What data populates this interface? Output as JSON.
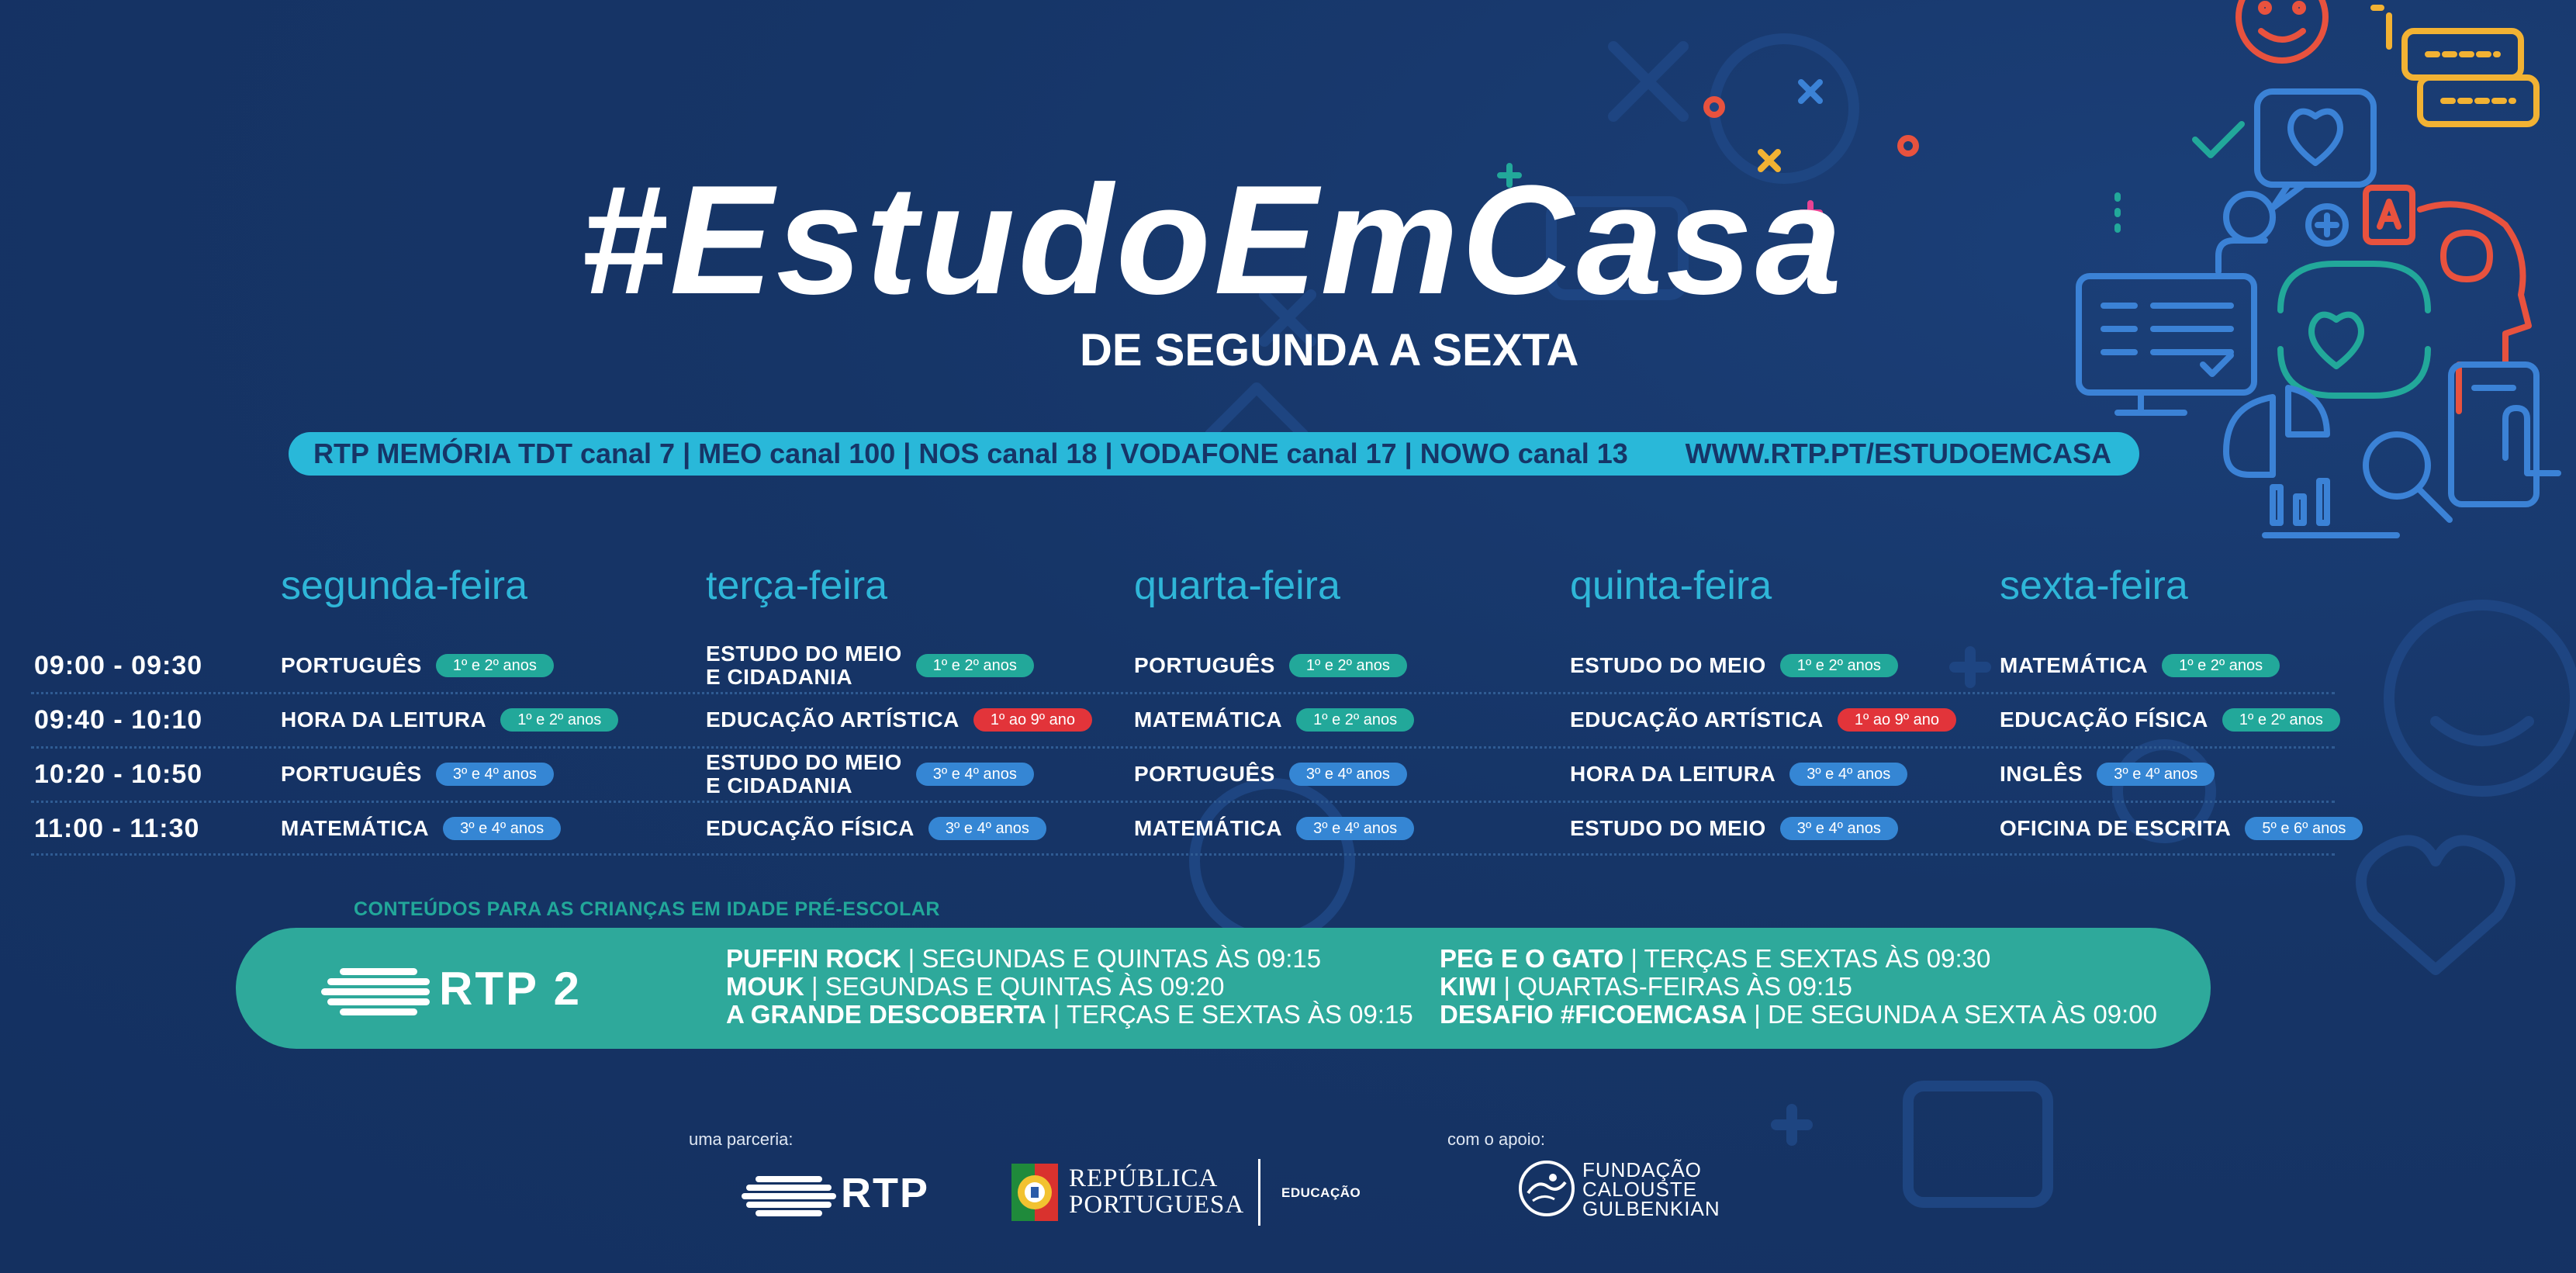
{
  "colors": {
    "background": "#163567",
    "cyan": "#2fb6d8",
    "teal": "#22a89a",
    "blue": "#3586d4",
    "red": "#e2343a"
  },
  "header": {
    "title": "#EstudoEmCasa",
    "subtitle": "DE SEGUNDA A SEXTA",
    "channels": "RTP MEMÓRIA  TDT canal 7 | MEO canal 100 | NOS canal 18 | VODAFONE canal 17 | NOWO canal 13",
    "url": "WWW.RTP.PT/ESTUDOEMCASA"
  },
  "schedule": {
    "days": [
      "segunda-feira",
      "terça-feira",
      "quarta-feira",
      "quinta-feira",
      "sexta-feira"
    ],
    "times": [
      "09:00 - 09:30",
      "09:40 - 10:10",
      "10:20 - 10:50",
      "11:00 - 11:30"
    ],
    "rows": [
      [
        {
          "subject": "PORTUGUÊS",
          "grades": "1º e 2º anos",
          "color": "teal"
        },
        {
          "subject": "ESTUDO DO MEIO\nE CIDADANIA",
          "grades": "1º e 2º anos",
          "color": "teal"
        },
        {
          "subject": "PORTUGUÊS",
          "grades": "1º e 2º anos",
          "color": "teal"
        },
        {
          "subject": "ESTUDO DO MEIO",
          "grades": "1º e 2º anos",
          "color": "teal"
        },
        {
          "subject": "MATEMÁTICA",
          "grades": "1º e 2º anos",
          "color": "teal"
        }
      ],
      [
        {
          "subject": "HORA DA LEITURA",
          "grades": "1º e 2º anos",
          "color": "teal"
        },
        {
          "subject": "EDUCAÇÃO ARTÍSTICA",
          "grades": "1º ao 9º ano",
          "color": "red"
        },
        {
          "subject": "MATEMÁTICA",
          "grades": "1º e 2º anos",
          "color": "teal"
        },
        {
          "subject": "EDUCAÇÃO ARTÍSTICA",
          "grades": "1º ao 9º ano",
          "color": "red"
        },
        {
          "subject": "EDUCAÇÃO FÍSICA",
          "grades": "1º e 2º anos",
          "color": "teal"
        }
      ],
      [
        {
          "subject": "PORTUGUÊS",
          "grades": "3º e 4º anos",
          "color": "blue"
        },
        {
          "subject": "ESTUDO DO MEIO\nE CIDADANIA",
          "grades": "3º e 4º anos",
          "color": "blue"
        },
        {
          "subject": "PORTUGUÊS",
          "grades": "3º e 4º anos",
          "color": "blue"
        },
        {
          "subject": "HORA DA LEITURA",
          "grades": "3º e 4º anos",
          "color": "blue"
        },
        {
          "subject": "INGLÊS",
          "grades": "3º e 4º anos",
          "color": "blue"
        }
      ],
      [
        {
          "subject": "MATEMÁTICA",
          "grades": "3º e 4º anos",
          "color": "blue"
        },
        {
          "subject": "EDUCAÇÃO FÍSICA",
          "grades": "3º e 4º anos",
          "color": "blue"
        },
        {
          "subject": "MATEMÁTICA",
          "grades": "3º e 4º anos",
          "color": "blue"
        },
        {
          "subject": "ESTUDO DO MEIO",
          "grades": "3º e 4º anos",
          "color": "blue"
        },
        {
          "subject": "OFICINA DE ESCRITA",
          "grades": "5º e 6º anos",
          "color": "blue"
        }
      ]
    ]
  },
  "preschool": {
    "heading": "CONTEÚDOS PARA AS CRIANÇAS EM IDADE PRÉ-ESCOLAR",
    "channel_logo": "RTP 2",
    "shows": [
      {
        "name": "PUFFIN ROCK",
        "schedule": " | SEGUNDAS E QUINTAS ÀS 09:15"
      },
      {
        "name": "MOUK",
        "schedule": " | SEGUNDAS E QUINTAS ÀS 09:20"
      },
      {
        "name": "A GRANDE DESCOBERTA",
        "schedule": " | TERÇAS E SEXTAS ÀS 09:15"
      },
      {
        "name": "PEG E O GATO",
        "schedule": " | TERÇAS E SEXTAS ÀS 09:30"
      },
      {
        "name": "KIWI",
        "schedule": " | QUARTAS-FEIRAS ÀS 09:15"
      },
      {
        "name": "DESAFIO #FICOEMCASA",
        "schedule": " | DE SEGUNDA A SEXTA ÀS 09:00"
      }
    ]
  },
  "footer": {
    "partnership_label": "uma parceria:",
    "rtp_logo": "RTP",
    "republica_line1": "REPÚBLICA",
    "republica_line2": "PORTUGUESA",
    "republica_dept": "EDUCAÇÃO",
    "support_label": "com o apoio:",
    "fcg_line1": "FUNDAÇÃO",
    "fcg_line2": "CALOUSTE",
    "fcg_line3": "GULBENKIAN"
  }
}
